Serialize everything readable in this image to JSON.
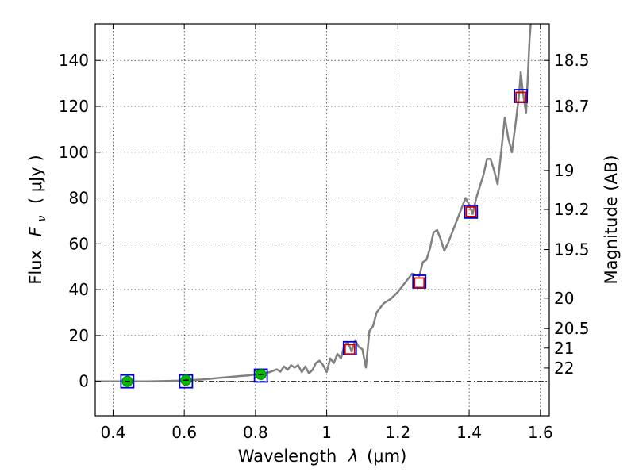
{
  "chart_data": {
    "type": "line",
    "xlabel": "Wavelength",
    "xlabel_symbol": "λ",
    "xlabel_unit": "(μm)",
    "ylabel": "Flux",
    "ylabel_symbol": "F",
    "ylabel_subscript": "ν",
    "ylabel_unit": "( μJy )",
    "ylabel_right": "Magnitude (AB)",
    "xlim": [
      0.35,
      1.625
    ],
    "ylim": [
      -15,
      156
    ],
    "grid": true,
    "x_ticks": [
      0.4,
      0.6,
      0.8,
      1.0,
      1.2,
      1.4,
      1.6
    ],
    "x_tick_labels": [
      "0.4",
      "0.6",
      "0.8",
      "1",
      "1.2",
      "1.4",
      "1.6"
    ],
    "y_ticks": [
      0,
      20,
      40,
      60,
      80,
      100,
      120,
      140
    ],
    "y_tick_labels": [
      "0",
      "20",
      "40",
      "60",
      "80",
      "100",
      "120",
      "140"
    ],
    "right_ticks": [
      {
        "label": "18.5",
        "flux": 140.0
      },
      {
        "label": "18.7",
        "flux": 120.0
      },
      {
        "label": "19",
        "flux": 92.0
      },
      {
        "label": "19.2",
        "flux": 75.0
      },
      {
        "label": "19.5",
        "flux": 57.5
      },
      {
        "label": "20",
        "flux": 36.3
      },
      {
        "label": "20.5",
        "flux": 23.0
      },
      {
        "label": "21",
        "flux": 14.5
      },
      {
        "label": "22",
        "flux": 5.8
      }
    ],
    "series": [
      {
        "name": "spectrum",
        "style": "line",
        "color": "#808080",
        "x": [
          0.35,
          0.5,
          0.6,
          0.65,
          0.7,
          0.72,
          0.75,
          0.78,
          0.8,
          0.82,
          0.84,
          0.86,
          0.87,
          0.88,
          0.89,
          0.9,
          0.91,
          0.92,
          0.93,
          0.94,
          0.95,
          0.96,
          0.97,
          0.98,
          0.99,
          1.0,
          1.01,
          1.02,
          1.03,
          1.04,
          1.05,
          1.06,
          1.07,
          1.08,
          1.09,
          1.1,
          1.11,
          1.12,
          1.13,
          1.14,
          1.16,
          1.18,
          1.2,
          1.22,
          1.24,
          1.26,
          1.27,
          1.28,
          1.29,
          1.3,
          1.31,
          1.32,
          1.33,
          1.34,
          1.36,
          1.38,
          1.39,
          1.4,
          1.41,
          1.42,
          1.43,
          1.44,
          1.45,
          1.46,
          1.47,
          1.48,
          1.49,
          1.5,
          1.51,
          1.52,
          1.53,
          1.54,
          1.545,
          1.55,
          1.555,
          1.56,
          1.57,
          1.575
        ],
        "y": [
          0,
          0,
          0.3,
          0.8,
          1.5,
          1.8,
          2.2,
          2.6,
          3.0,
          3.5,
          4.0,
          5.2,
          4.2,
          6.5,
          5.0,
          7.0,
          6.0,
          7.0,
          4.0,
          6.5,
          3.5,
          5.0,
          8.0,
          9.0,
          7.0,
          4.0,
          10.0,
          8.0,
          12.0,
          10.0,
          16.0,
          17.0,
          13.0,
          18.0,
          15.0,
          14.0,
          6.0,
          22.0,
          24.0,
          30.0,
          34.0,
          36.0,
          39.0,
          43.0,
          47.0,
          46.0,
          52.0,
          53.0,
          58.0,
          65.0,
          66.0,
          62.0,
          57.0,
          60.0,
          68.0,
          76.0,
          80.0,
          77.0,
          73.0,
          80.0,
          85.0,
          90.0,
          97.0,
          97.0,
          92.0,
          86.0,
          100.0,
          115.0,
          106.0,
          100.0,
          112.0,
          125.0,
          135.0,
          127.0,
          122.0,
          117.0,
          150.0,
          160.0
        ]
      },
      {
        "name": "photometry-blue-squares",
        "style": "marker",
        "marker": "square",
        "edge_color": "#0000cc",
        "x": [
          0.44,
          0.605,
          0.815,
          1.065,
          1.26,
          1.405,
          1.545
        ],
        "y": [
          0,
          0,
          2.5,
          14.5,
          43.5,
          74.0,
          124.5
        ]
      },
      {
        "name": "model-red-squares",
        "style": "marker",
        "marker": "square",
        "edge_color": "#cc0000",
        "x": [
          1.065,
          1.26,
          1.405,
          1.545
        ],
        "y": [
          14.0,
          43.0,
          74.0,
          124.0
        ]
      },
      {
        "name": "photometry-green-circles",
        "style": "marker",
        "marker": "circle",
        "fill_color": "#00bb00",
        "x": [
          0.44,
          0.605,
          0.815
        ],
        "y": [
          0,
          0.5,
          3.0
        ]
      }
    ],
    "zero_line": {
      "y": 0,
      "style": "dash-dot",
      "color": "#000000"
    }
  }
}
